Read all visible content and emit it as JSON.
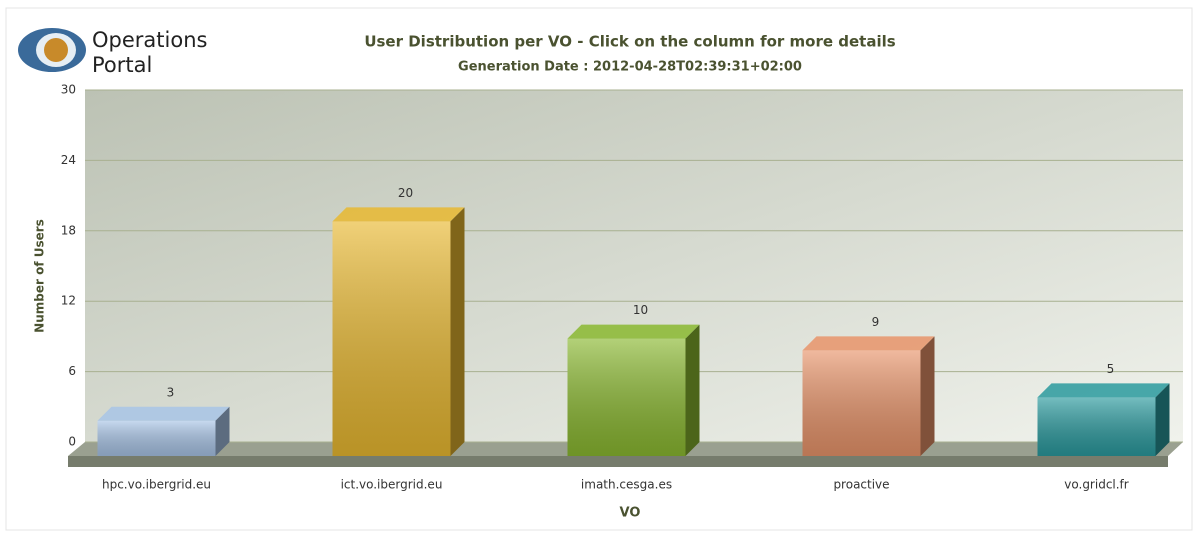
{
  "logo": [
    "Operations",
    "Portal"
  ],
  "chart_data": {
    "type": "bar3d",
    "title": "User Distribution per VO - Click on the column for more details",
    "subtitle": "Generation Date : 2012-04-28T02:39:31+02:00",
    "x_label": "VO",
    "y_label": "Number of Users",
    "categories": [
      "hpc.vo.ibergrid.eu",
      "ict.vo.ibergrid.eu",
      "imath.cesga.es",
      "proactive",
      "vo.gridcl.fr"
    ],
    "values": [
      3,
      20,
      10,
      9,
      5
    ],
    "colors": [
      "#a8c4e6",
      "#e8b830",
      "#8ab830",
      "#e8946a",
      "#2a9a9e"
    ],
    "ylim": [
      0,
      30
    ],
    "yticks": [
      0,
      6,
      12,
      18,
      24,
      30
    ],
    "grid": true
  }
}
